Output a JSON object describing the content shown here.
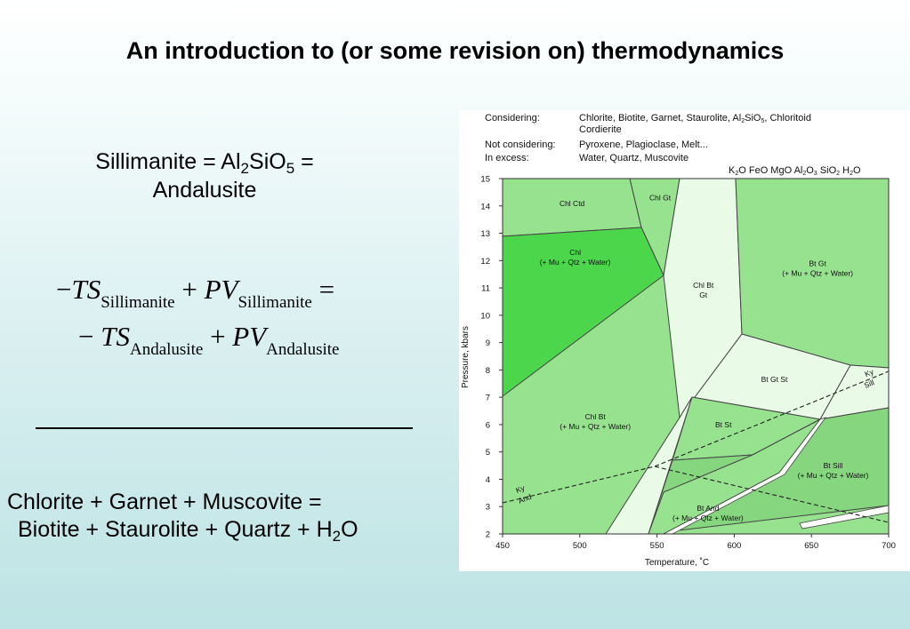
{
  "title": "An introduction to (or some revision on) thermodynamics",
  "formula": {
    "line1_a": "Sillimanite = Al",
    "line1_sub1": "2",
    "line1_b": "SiO",
    "line1_sub2": "5",
    "line1_c": " =",
    "line2": "Andalusite"
  },
  "equation": {
    "minus": "−",
    "T": "T",
    "S": "S",
    "P": "P",
    "V": "V",
    "plus": "+",
    "equals": "=",
    "sub_sil": "Sillimanite",
    "sub_and": "Andalusite"
  },
  "reaction": {
    "line1": "Chlorite + Garnet + Muscovite =",
    "line2_a": "Biotite + Staurolite + Quartz + H",
    "line2_sub": "2",
    "line2_b": "O"
  },
  "diagram": {
    "considering_label": "Considering:",
    "considering_value_a": "Chlorite, Biotite, Garnet, Staurolite, Al",
    "considering_sub1": "2",
    "considering_value_b": "SiO",
    "considering_sub2": "5",
    "considering_value_c": ", Chloritoid",
    "considering_value2": "Cordierite",
    "not_considering_label": "Not considering:",
    "not_considering_value": "Pyroxene, Plagioclase, Melt...",
    "excess_label": "In excess:",
    "excess_value": "Water, Quartz, Muscovite",
    "system_k": "K",
    "system_k_sub": "2",
    "system_o_feo_mgo_al": "O FeO MgO Al",
    "system_al_sub": "2",
    "system_o3": "O",
    "system_o3_sub": "3",
    "system_sio": " SiO",
    "system_sio_sub": "2",
    "system_h": " H",
    "system_h_sub": "2",
    "system_o_end": "O",
    "colors": {
      "light": "#e9fbe7",
      "medium": "#97e28f",
      "bright": "#4cd64c",
      "midgreen": "#86d67f"
    }
  },
  "chart_data": {
    "type": "phase-diagram",
    "xlabel": "Temperature, ˚C",
    "ylabel": "Pressure, kbars",
    "xlim": [
      450,
      700
    ],
    "ylim": [
      2,
      15
    ],
    "xticks": [
      "450",
      "500",
      "550",
      "600",
      "650",
      "700"
    ],
    "yticks": [
      "2",
      "3",
      "4",
      "5",
      "6",
      "7",
      "8",
      "9",
      "10",
      "11",
      "12",
      "13",
      "14",
      "15"
    ],
    "fields": [
      {
        "lines": [
          "Chl Ctd"
        ],
        "t": 495,
        "p": 14.0
      },
      {
        "lines": [
          "Chl Gt"
        ],
        "t": 552,
        "p": 14.2
      },
      {
        "lines": [
          "Chl",
          "(+ Mu + Qtz + Water)"
        ],
        "t": 497,
        "p": 12.2
      },
      {
        "lines": [
          "Chl Bt",
          "Gt"
        ],
        "t": 580,
        "p": 11.0
      },
      {
        "lines": [
          "Bt Gt",
          "(+ Mu + Qtz + Water)"
        ],
        "t": 654,
        "p": 11.8
      },
      {
        "lines": [
          "Bt Gt St"
        ],
        "t": 626,
        "p": 7.55
      },
      {
        "lines": [
          "Chl Bt",
          "(+ Mu + Qtz + Water)"
        ],
        "t": 510,
        "p": 6.2
      },
      {
        "lines": [
          "Bt St"
        ],
        "t": 593,
        "p": 5.9
      },
      {
        "lines": [
          "Bt Sill",
          "(+ Mu + Qtz + Water)"
        ],
        "t": 664,
        "p": 4.4
      },
      {
        "lines": [
          "Bt And",
          "(+ Mu + Qtz + Water)"
        ],
        "t": 583,
        "p": 2.85
      }
    ],
    "line_labels": [
      {
        "text": "Ky",
        "t": 462,
        "p": 3.55
      },
      {
        "text": "And",
        "t": 465,
        "p": 3.2
      },
      {
        "text": "Ky",
        "t": 688,
        "p": 7.8
      },
      {
        "text": "Sill",
        "t": 688,
        "p": 7.4
      }
    ]
  }
}
